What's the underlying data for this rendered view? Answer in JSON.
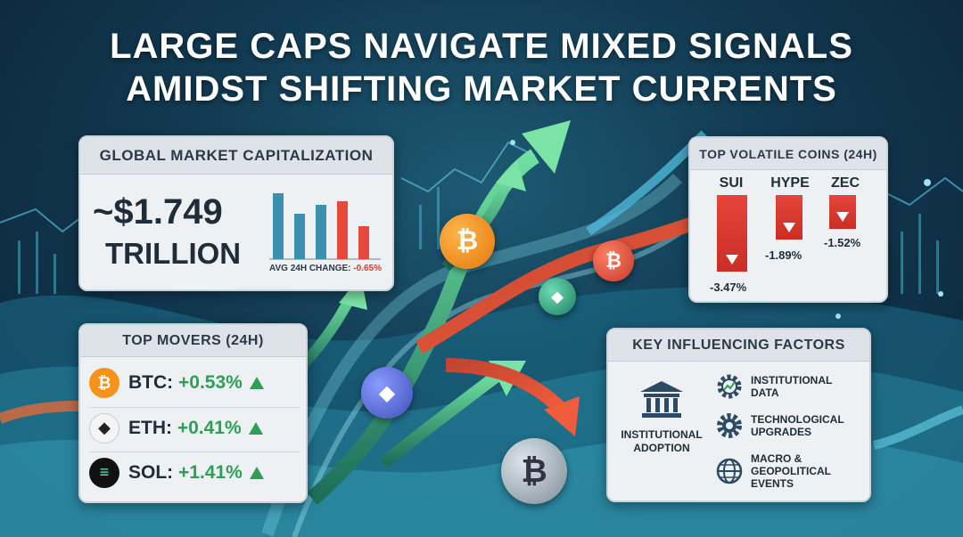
{
  "headline": {
    "line1": "LARGE CAPS NAVIGATE MIXED SIGNALS",
    "line2": "AMIDST SHIFTING MARKET CURRENTS"
  },
  "market_cap": {
    "title": "GLOBAL MARKET CAPITALIZATION",
    "value": "~$1.749",
    "unit": "TRILLION",
    "avg_label": "AVG 24H CHANGE:",
    "avg_value": "-0.65%"
  },
  "movers": {
    "title": "TOP MOVERS (24H)",
    "items": [
      {
        "label": "BTC:",
        "change": "+0.53%",
        "icon": "bitcoin-icon",
        "symbol": "₿",
        "color": "#f7931a"
      },
      {
        "label": "ETH:",
        "change": "+0.41%",
        "icon": "ethereum-icon",
        "symbol": "◆",
        "color": "#3c3c3d"
      },
      {
        "label": "SOL:",
        "change": "+1.41%",
        "icon": "solana-icon",
        "symbol": "≡",
        "color": "#1b1b2f"
      }
    ]
  },
  "volatile": {
    "title": "TOP VOLATILE COINS (24H)",
    "coins": [
      {
        "symbol": "SUI",
        "change": "-3.47%"
      },
      {
        "symbol": "HYPE",
        "change": "-1.89%"
      },
      {
        "symbol": "ZEC",
        "change": "-1.52%"
      }
    ]
  },
  "factors": {
    "title": "KEY INFLUENCING FACTORS",
    "main": {
      "label1": "INSTITUTIONAL",
      "label2": "ADOPTION",
      "icon": "bank-building-icon"
    },
    "items": [
      {
        "line1": "INSTITUTIONAL",
        "line2": "DATA",
        "icon": "gear-chart-icon"
      },
      {
        "line1": "TECHNOLOGICAL",
        "line2": "UPGRADES",
        "icon": "gear-icon"
      },
      {
        "line1": "MACRO &",
        "line2": "GEOPOLITICAL",
        "line3": "EVENTS",
        "icon": "globe-icon"
      }
    ]
  },
  "colors": {
    "positive": "#2f9e57",
    "negative": "#d63a2f",
    "background": "#123a52"
  }
}
